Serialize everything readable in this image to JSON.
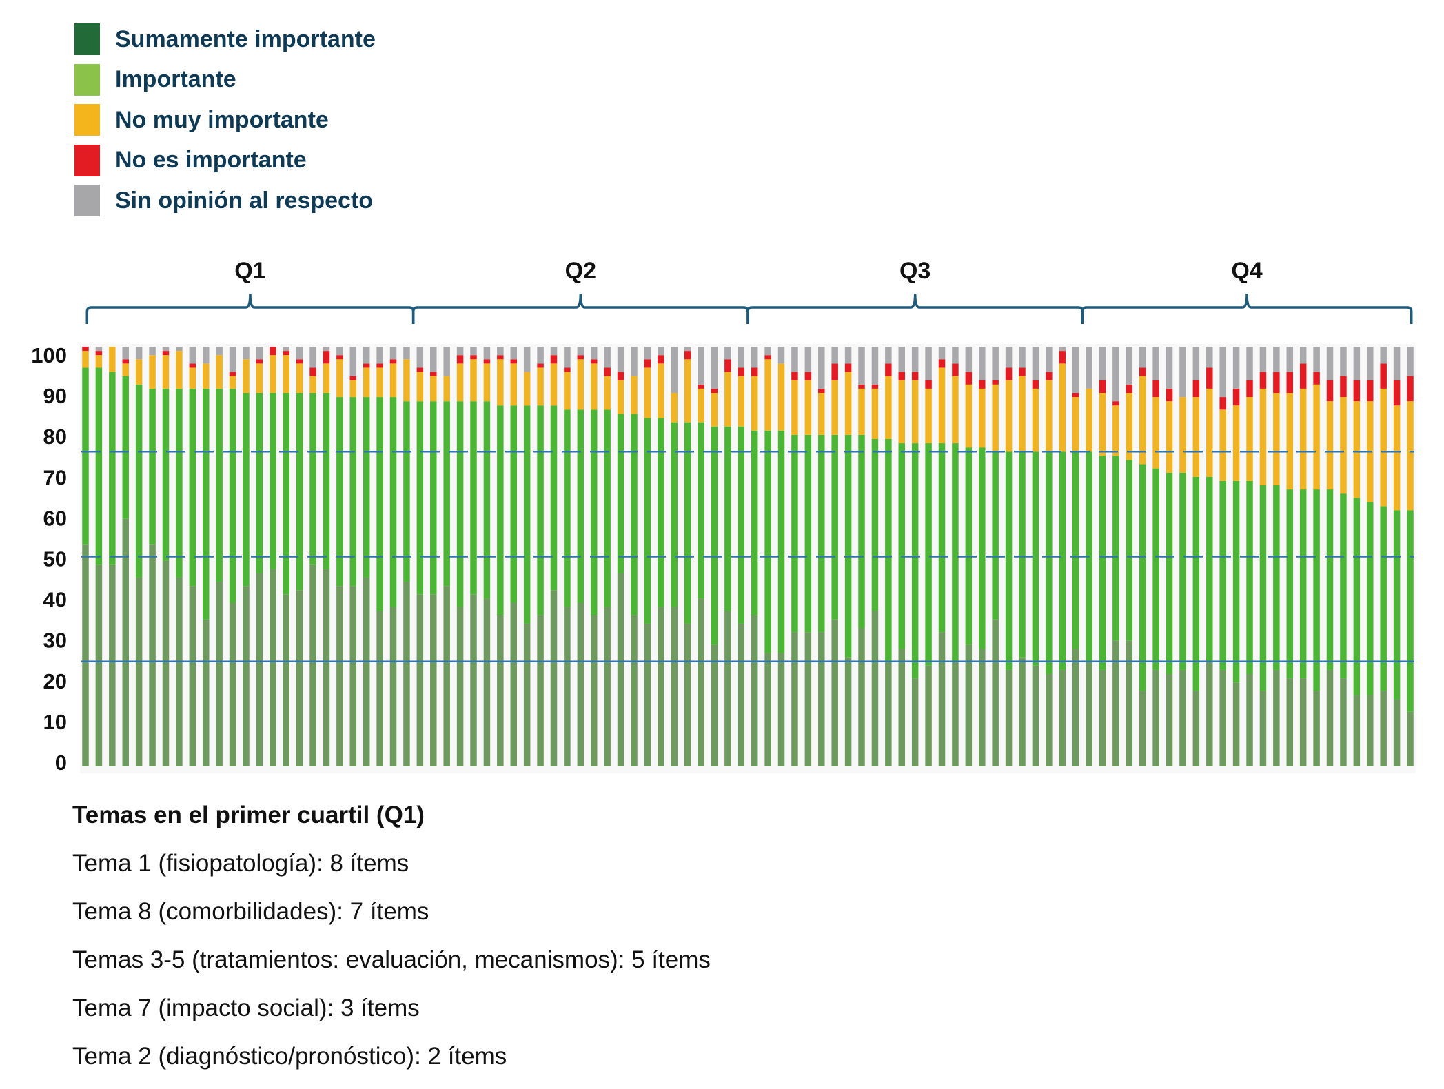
{
  "chart_data": {
    "type": "bar",
    "stacked": true,
    "yticks": [
      "0",
      "10",
      "20",
      "30",
      "40",
      "50",
      "60",
      "70",
      "80",
      "90",
      "100"
    ],
    "ylim": [
      0,
      100
    ],
    "reference_lines": [
      {
        "value": 75,
        "style": "dashed"
      },
      {
        "value": 50,
        "style": "dashed"
      },
      {
        "value": 25,
        "style": "solid"
      }
    ],
    "quartile_groups": [
      {
        "label": "Q1",
        "from_item": 1,
        "to_item": 25
      },
      {
        "label": "Q2",
        "from_item": 26,
        "to_item": 50
      },
      {
        "label": "Q3",
        "from_item": 51,
        "to_item": 75
      },
      {
        "label": "Q4",
        "from_item": 76,
        "to_item": 100
      }
    ],
    "legend_position": "top-left",
    "series": [
      {
        "name": "Sumamente importante",
        "color": "#226a38",
        "bar_color": "#6f9a5f",
        "values": [
          53,
          48,
          48,
          59,
          45,
          53,
          49,
          45,
          43,
          35,
          44,
          39,
          43,
          46,
          47,
          41,
          42,
          48,
          47,
          43,
          43,
          45,
          37,
          38,
          44,
          41,
          41,
          43,
          38,
          41,
          40,
          36,
          39,
          34,
          36,
          42,
          38,
          39,
          36,
          38,
          46,
          36,
          34,
          38,
          38,
          34,
          40,
          29,
          37,
          34,
          36,
          27,
          27,
          32,
          32,
          32,
          35,
          26,
          33,
          37,
          25,
          28,
          21,
          24,
          32,
          25,
          29,
          28,
          35,
          23,
          26,
          24,
          22,
          23,
          28,
          25,
          23,
          30,
          30,
          18,
          23,
          22,
          23,
          18,
          25,
          23,
          20,
          22,
          18,
          23,
          21,
          21,
          18,
          23,
          21,
          17,
          17,
          18,
          16,
          13
        ]
      },
      {
        "name": "Importante",
        "color": "#8bc34a",
        "bar_color": "#4db535",
        "values": [
          42,
          47,
          46,
          34,
          46,
          37,
          41,
          45,
          47,
          55,
          46,
          51,
          46,
          43,
          42,
          48,
          47,
          41,
          42,
          45,
          45,
          43,
          51,
          50,
          43,
          46,
          46,
          44,
          49,
          46,
          47,
          50,
          47,
          52,
          50,
          44,
          47,
          46,
          49,
          47,
          38,
          48,
          49,
          45,
          44,
          48,
          42,
          52,
          44,
          47,
          44,
          53,
          53,
          47,
          47,
          47,
          44,
          53,
          46,
          41,
          53,
          49,
          56,
          53,
          45,
          52,
          47,
          48,
          40,
          52,
          49,
          51,
          53,
          52,
          47,
          50,
          51,
          44,
          43,
          54,
          48,
          48,
          47,
          51,
          44,
          45,
          48,
          46,
          49,
          44,
          45,
          45,
          48,
          43,
          44,
          47,
          46,
          44,
          45,
          48
        ]
      },
      {
        "name": "No muy importante",
        "color": "#f3b41c",
        "bar_color": "#f0b324",
        "values": [
          4,
          3,
          6,
          3,
          6,
          8,
          8,
          9,
          5,
          6,
          8,
          3,
          8,
          7,
          9,
          9,
          7,
          4,
          7,
          9,
          4,
          7,
          7,
          8,
          10,
          7,
          6,
          6,
          9,
          10,
          9,
          11,
          10,
          8,
          9,
          10,
          9,
          12,
          11,
          8,
          8,
          9,
          12,
          13,
          7,
          15,
          8,
          8,
          13,
          12,
          13,
          17,
          16,
          13,
          13,
          10,
          13,
          15,
          11,
          12,
          15,
          15,
          15,
          13,
          18,
          16,
          15,
          14,
          16,
          17,
          18,
          15,
          17,
          21,
          13,
          15,
          15,
          12,
          16,
          21,
          17,
          17,
          18,
          19,
          21,
          17,
          18,
          20,
          23,
          22,
          23,
          24,
          25,
          21,
          23,
          23,
          24,
          28,
          25,
          26
        ]
      },
      {
        "name": "No es importante",
        "color": "#e31b23",
        "bar_color": "#e31b23",
        "values": [
          1,
          1,
          0,
          1,
          0,
          0,
          1,
          0,
          1,
          0,
          0,
          1,
          0,
          1,
          2,
          1,
          1,
          2,
          3,
          1,
          1,
          1,
          1,
          1,
          0,
          1,
          1,
          0,
          2,
          1,
          1,
          1,
          1,
          0,
          1,
          2,
          1,
          1,
          1,
          2,
          2,
          0,
          2,
          2,
          0,
          2,
          1,
          1,
          3,
          2,
          2,
          1,
          0,
          2,
          2,
          1,
          4,
          2,
          1,
          1,
          3,
          2,
          2,
          2,
          2,
          3,
          3,
          2,
          1,
          3,
          2,
          2,
          2,
          3,
          1,
          0,
          3,
          1,
          2,
          2,
          4,
          3,
          0,
          4,
          5,
          3,
          4,
          4,
          4,
          5,
          5,
          6,
          3,
          5,
          5,
          5,
          5,
          6,
          6,
          6
        ]
      },
      {
        "name": "Sin opinión al respecto",
        "color": "#a7a7a9",
        "bar_color": "#a9a9ab",
        "values": [
          0,
          1,
          0,
          3,
          3,
          2,
          1,
          1,
          4,
          4,
          2,
          6,
          3,
          3,
          0,
          1,
          3,
          5,
          1,
          2,
          7,
          4,
          4,
          3,
          3,
          5,
          6,
          7,
          2,
          2,
          3,
          2,
          3,
          6,
          4,
          2,
          5,
          2,
          3,
          5,
          6,
          7,
          3,
          2,
          11,
          1,
          9,
          10,
          3,
          5,
          5,
          2,
          4,
          6,
          6,
          10,
          4,
          4,
          9,
          9,
          4,
          6,
          6,
          8,
          3,
          4,
          6,
          8,
          8,
          5,
          5,
          8,
          6,
          1,
          11,
          10,
          8,
          13,
          9,
          5,
          8,
          10,
          12,
          8,
          5,
          12,
          10,
          8,
          6,
          6,
          6,
          4,
          6,
          8,
          7,
          8,
          8,
          4,
          8,
          7
        ]
      }
    ],
    "reference_line_color": "#2f74b0",
    "brace_color": "#1f5a7a"
  },
  "notes": {
    "title": "Temas en el primer cuartil (Q1)",
    "lines": [
      "Tema 1 (fisiopatología): 8 ítems",
      "Tema 8 (comorbilidades): 7 ítems",
      "Temas 3-5 (tratamientos: evaluación, mecanismos): 5 ítems",
      "Tema 7 (impacto social): 3 ítems",
      "Tema 2 (diagnóstico/pronóstico): 2 ítems"
    ]
  }
}
